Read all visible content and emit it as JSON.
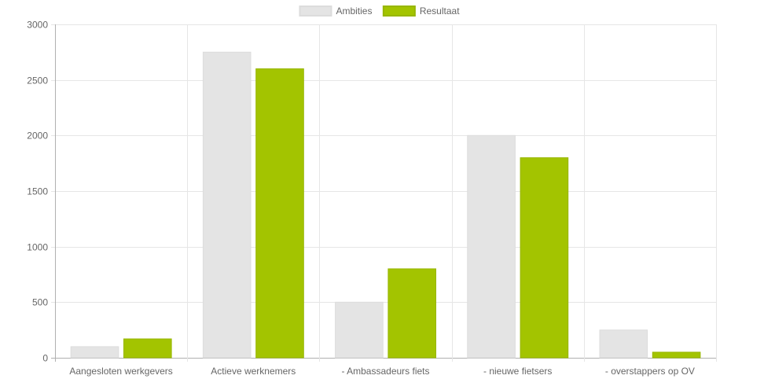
{
  "chart_data": {
    "type": "bar",
    "categories": [
      "Aangesloten werkgevers",
      "Actieve werknemers",
      "- Ambassadeurs fiets",
      "- nieuwe fietsers",
      "- overstappers op OV"
    ],
    "series": [
      {
        "name": "Ambities",
        "values": [
          100,
          2750,
          500,
          2000,
          250
        ],
        "color": "#e4e4e4",
        "border": "#dcdcdc"
      },
      {
        "name": "Resultaat",
        "values": [
          170,
          2600,
          800,
          1800,
          50
        ],
        "color": "#a3c400",
        "border": "#97b600"
      }
    ],
    "ylim": [
      0,
      3000
    ],
    "yticks": [
      0,
      500,
      1000,
      1500,
      2000,
      2500,
      3000
    ],
    "grid": true,
    "legend": "top-center",
    "title": "",
    "xlabel": "",
    "ylabel": ""
  }
}
